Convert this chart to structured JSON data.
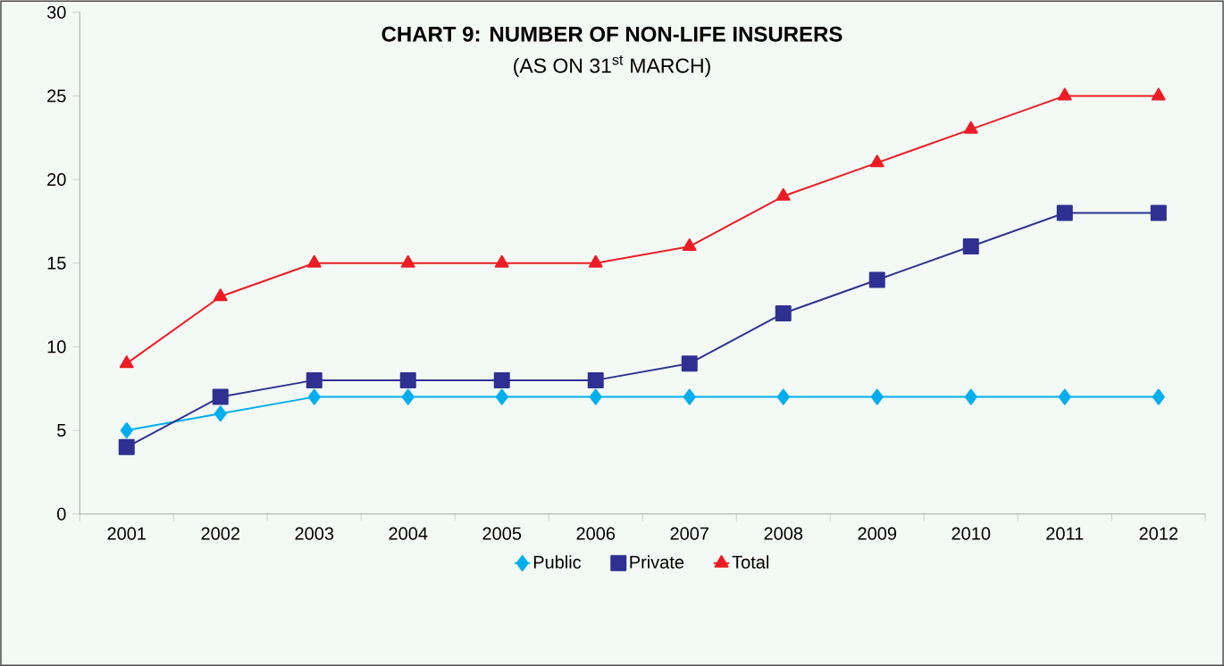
{
  "chart_data": {
    "type": "line",
    "title": "CHART 9: NUMBER OF NON-LIFE INSURERS",
    "subtitle": "(AS ON 31$^{st}$ MARCH)",
    "categories": [
      "2001",
      "2002",
      "2003",
      "2004",
      "2005",
      "2006",
      "2007",
      "2008",
      "2009",
      "2010",
      "2011",
      "2012"
    ],
    "series": [
      {
        "name": "Public",
        "color": "#00aeef",
        "marker": "diamond",
        "values": [
          5,
          6,
          7,
          7,
          7,
          7,
          7,
          7,
          7,
          7,
          7,
          7
        ]
      },
      {
        "name": "Private",
        "color": "#2e3192",
        "marker": "square",
        "values": [
          4,
          7,
          8,
          8,
          8,
          8,
          9,
          12,
          14,
          16,
          18,
          18
        ]
      },
      {
        "name": "Total",
        "color": "#ed1c24",
        "marker": "triangle",
        "values": [
          9,
          13,
          15,
          15,
          15,
          15,
          16,
          19,
          21,
          23,
          25,
          25
        ]
      }
    ],
    "ylim": [
      0,
      30
    ],
    "yticks": [
      0,
      5,
      10,
      15,
      20,
      25,
      30
    ],
    "grid": false,
    "legend": "bottom",
    "line_style": "solid"
  }
}
